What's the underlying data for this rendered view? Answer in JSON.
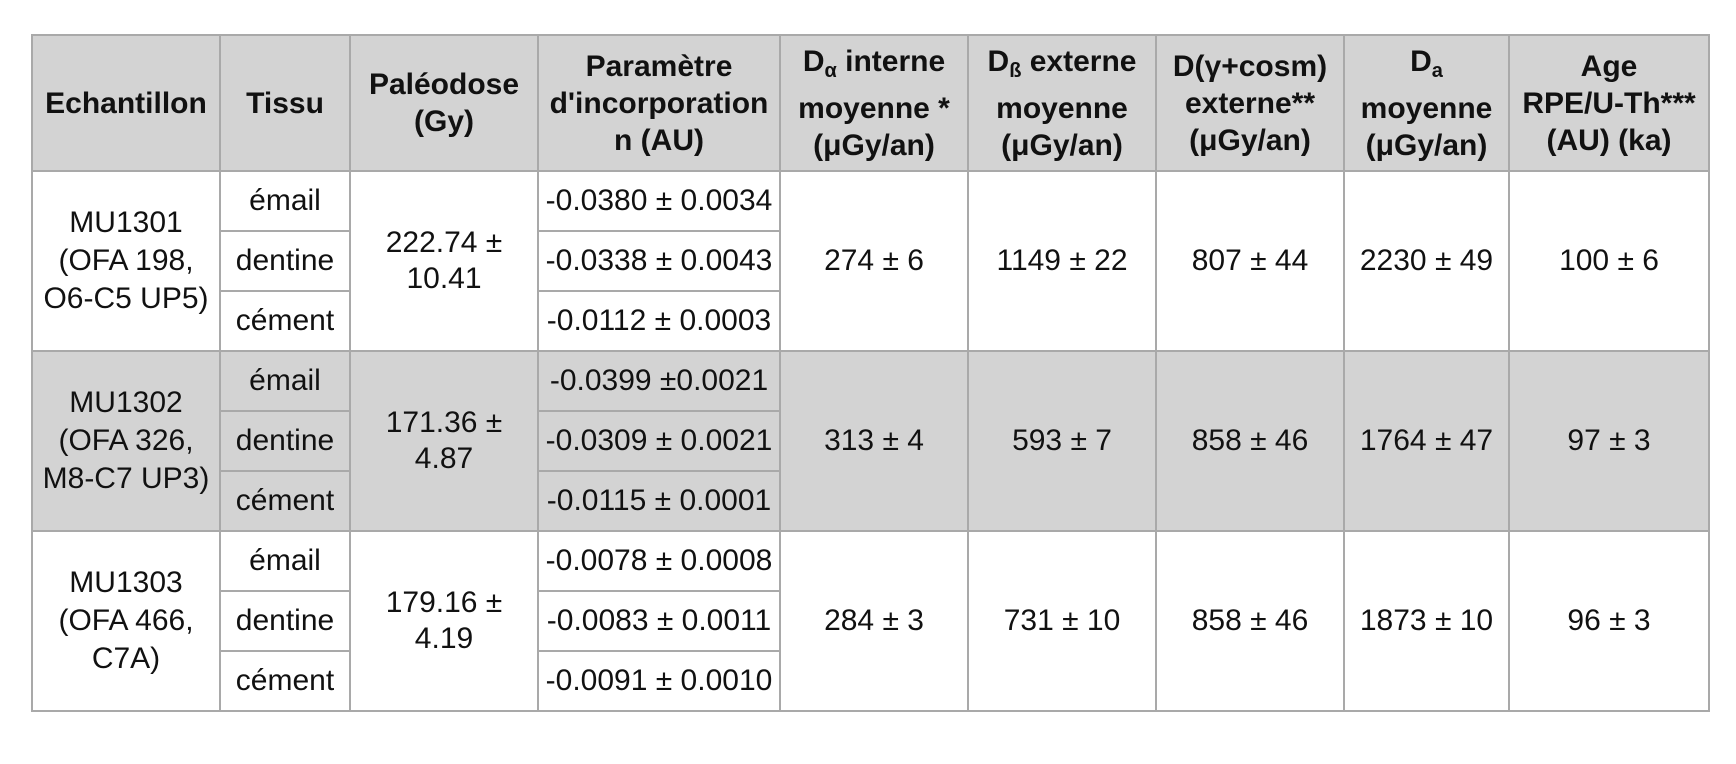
{
  "table": {
    "headers": {
      "sample": "Echantillon",
      "tissue": "Tissu",
      "paleodose_1": "Paléodose",
      "paleodose_2": "(Gy)",
      "param_1": "Paramètre",
      "param_2": "d'incorporation",
      "param_3": "n (AU)",
      "da_int_main": "D",
      "da_int_sub": "α",
      "da_int_1": " interne",
      "da_int_2": "moyenne *",
      "da_int_3": "(μGy/an)",
      "db_ext_main": "D",
      "db_ext_sub": "ß",
      "db_ext_1": " externe",
      "db_ext_2": "moyenne",
      "db_ext_3": "(μGy/an)",
      "dg_1": "D(γ+cosm)",
      "dg_2": "externe**",
      "dg_3": "(μGy/an)",
      "da_main": "D",
      "da_sub": "a",
      "da_2": "moyenne",
      "da_3": "(μGy/an)",
      "age_1": "Age",
      "age_2": "RPE/U-Th***",
      "age_3": "(AU) (ka)"
    },
    "rows": [
      {
        "sample_1": "MU1301",
        "sample_2": "(OFA 198,",
        "sample_3": "O6-C5 UP5)",
        "tissues": [
          "émail",
          "dentine",
          "cément"
        ],
        "paleodose_1": "222.74 ±",
        "paleodose_2": "10.41",
        "params": [
          "-0.0380 ± 0.0034",
          "-0.0338 ± 0.0043",
          "-0.0112 ± 0.0003"
        ],
        "da_int": "274 ± 6",
        "db_ext": "1149  ± 22",
        "dg": "807 ± 44",
        "da": "2230 ± 49",
        "age": "100 ± 6"
      },
      {
        "sample_1": "MU1302",
        "sample_2": "(OFA 326,",
        "sample_3": "M8-C7 UP3)",
        "tissues": [
          "émail",
          "dentine",
          "cément"
        ],
        "paleodose_1": "171.36 ± 4.87",
        "paleodose_2": "",
        "params": [
          "-0.0399 ±0.0021",
          "-0.0309 ± 0.0021",
          "-0.0115 ± 0.0001"
        ],
        "da_int": "313 ± 4",
        "db_ext": "593  ± 7",
        "dg": "858 ± 46",
        "da": "1764 ± 47",
        "age": "97 ± 3"
      },
      {
        "sample_1": "MU1303",
        "sample_2": "(OFA 466,",
        "sample_3": "C7A)",
        "tissues": [
          "émail",
          "dentine",
          "cément"
        ],
        "paleodose_1": "179.16 ± 4.19",
        "paleodose_2": "",
        "params": [
          "-0.0078 ± 0.0008",
          "-0.0083 ± 0.0011",
          "-0.0091 ± 0.0010"
        ],
        "da_int": "284 ± 3",
        "db_ext": "731 ± 10",
        "dg": "858 ± 46",
        "da": "1873 ± 10",
        "age": "96 ± 3"
      }
    ]
  },
  "colors": {
    "header_bg": "#d3d3d3",
    "shaded_row_bg": "#d3d3d3",
    "border": "#a9a9a9"
  }
}
